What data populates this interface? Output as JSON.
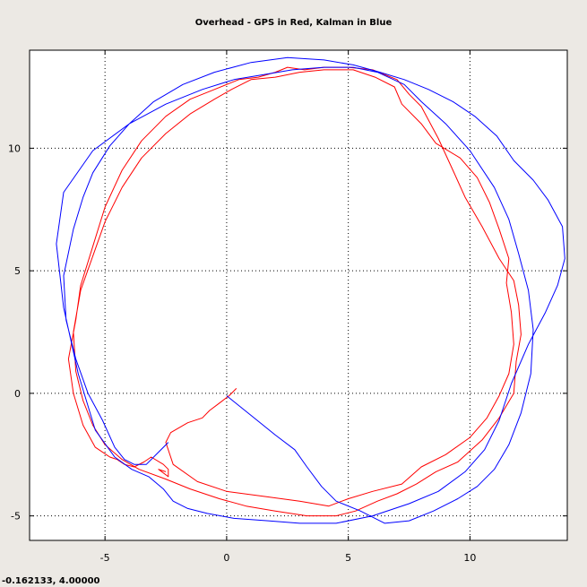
{
  "chart_data": {
    "type": "line",
    "title": "Overhead - GPS in Red, Kalman in Blue",
    "xlabel": "",
    "ylabel": "",
    "xlim": [
      -8.1,
      14
    ],
    "ylim": [
      -6,
      14
    ],
    "x_ticks": [
      -5,
      0,
      5,
      10
    ],
    "y_ticks": [
      -5,
      0,
      5,
      10
    ],
    "grid": true,
    "grid_style": "dotted",
    "series": [
      {
        "color": "#ff0000",
        "x": [
          0.4,
          0.1,
          -0.3,
          -0.7,
          -1.0,
          -1.6,
          -2.3,
          -2.5,
          -2.2,
          -1.2,
          0.0,
          1.5,
          3.0,
          4.2,
          5.0,
          6.0,
          7.2,
          8.0,
          9.0,
          10.0,
          10.7,
          11.2,
          11.6,
          11.8,
          11.7,
          11.5,
          11.6,
          11.2,
          10.8,
          10.3,
          9.6,
          8.6,
          8.0,
          7.2,
          6.9,
          6.1,
          5.2,
          4.0,
          3.0,
          2.0,
          1.0,
          0.2,
          -0.5,
          -1.5,
          -2.5,
          -3.5,
          -4.3,
          -5.0,
          -5.5,
          -6.0,
          -6.3,
          -6.2,
          -5.9,
          -5.5,
          -5.0,
          -4.3,
          -3.6,
          -2.5,
          -1.5,
          -0.3,
          0.8,
          2.0,
          3.3,
          4.5,
          5.3,
          6.2,
          7.0,
          7.8,
          8.6,
          9.5,
          10.5,
          11.2,
          11.8,
          11.9,
          12.1,
          12.0,
          11.8,
          11.2,
          10.5,
          9.8,
          9.3,
          8.7,
          8.0,
          7.5,
          7.0,
          6.0,
          5.0,
          4.0,
          3.2,
          2.5,
          2.0,
          1.3,
          0.5,
          -0.5,
          -1.5,
          -2.5,
          -3.5,
          -4.3,
          -5.0,
          -5.5,
          -6.0,
          -6.2,
          -6.5,
          -6.3,
          -5.9,
          -5.4,
          -4.8,
          -4.5,
          -4.2,
          -3.8,
          -3.4,
          -3.1,
          -2.6,
          -2.4,
          -2.4,
          -2.8,
          -2.5
        ],
        "y": [
          0.2,
          -0.1,
          -0.4,
          -0.7,
          -1.0,
          -1.2,
          -1.6,
          -2.0,
          -2.9,
          -3.6,
          -4.0,
          -4.2,
          -4.4,
          -4.6,
          -4.3,
          -4.0,
          -3.7,
          -3.0,
          -2.5,
          -1.8,
          -1.0,
          -0.1,
          0.8,
          2.0,
          3.3,
          4.5,
          5.5,
          6.7,
          7.8,
          8.8,
          9.6,
          10.2,
          11.0,
          11.8,
          12.5,
          12.9,
          13.2,
          13.2,
          13.1,
          12.9,
          12.8,
          12.4,
          12.0,
          11.4,
          10.6,
          9.6,
          8.4,
          7.0,
          5.6,
          4.2,
          2.5,
          0.9,
          -0.3,
          -1.3,
          -2.1,
          -2.7,
          -3.1,
          -3.5,
          -3.9,
          -4.3,
          -4.6,
          -4.8,
          -5.0,
          -5.0,
          -4.8,
          -4.4,
          -4.1,
          -3.7,
          -3.2,
          -2.8,
          -1.9,
          -1.0,
          0.0,
          1.3,
          2.4,
          3.6,
          4.6,
          5.5,
          6.8,
          8.0,
          9.1,
          10.4,
          11.7,
          12.2,
          12.8,
          13.2,
          13.3,
          13.3,
          13.2,
          13.3,
          13.1,
          12.9,
          12.8,
          12.4,
          12.0,
          11.3,
          10.3,
          9.1,
          7.6,
          6.0,
          4.4,
          3.0,
          1.4,
          0.0,
          -1.3,
          -2.2,
          -2.6,
          -2.7,
          -2.9,
          -3.0,
          -2.8,
          -2.6,
          -2.9,
          -3.1,
          -3.4,
          -3.1,
          -3.2
        ]
      },
      {
        "color": "#0000ff",
        "x": [
          0.0,
          1.0,
          2.0,
          2.8,
          3.3,
          3.9,
          4.5,
          5.5,
          6.5,
          7.5,
          8.5,
          9.5,
          10.3,
          11.0,
          11.6,
          12.1,
          12.5,
          12.6,
          12.4,
          12.0,
          11.6,
          11.0,
          10.0,
          9.0,
          8.0,
          7.3,
          6.2,
          5.2,
          4.0,
          2.7,
          1.5,
          0.3,
          -1.0,
          -2.5,
          -4.0,
          -5.5,
          -6.7,
          -7.0,
          -6.7,
          -6.1,
          -5.4,
          -4.6,
          -3.9,
          -3.2,
          -2.6,
          -2.2,
          -1.6,
          -0.8,
          0.3,
          1.7,
          3.0,
          4.5,
          6.0,
          7.5,
          8.7,
          9.8,
          10.6,
          11.2,
          11.7,
          12.4,
          13.1,
          13.6,
          13.9,
          13.8,
          13.2,
          12.6,
          11.8,
          11.1,
          10.2,
          9.3,
          8.3,
          7.3,
          6.3,
          5.2,
          4.0,
          2.5,
          1.0,
          -0.5,
          -1.8,
          -3.0,
          -4.0,
          -4.8,
          -5.5,
          -5.9,
          -6.3,
          -6.7,
          -6.6,
          -6.2,
          -5.7,
          -5.1,
          -4.6,
          -4.2,
          -3.8,
          -3.3,
          -2.8,
          -2.4
        ],
        "y": [
          -0.1,
          -0.9,
          -1.7,
          -2.3,
          -3.0,
          -3.8,
          -4.4,
          -4.8,
          -5.3,
          -5.2,
          -4.8,
          -4.3,
          -3.8,
          -3.1,
          -2.1,
          -0.8,
          0.8,
          2.6,
          4.2,
          5.7,
          7.1,
          8.4,
          9.9,
          11.0,
          11.9,
          12.6,
          13.1,
          13.3,
          13.3,
          13.2,
          13.0,
          12.8,
          12.4,
          11.8,
          11.0,
          9.9,
          8.2,
          6.1,
          3.5,
          0.8,
          -1.5,
          -2.6,
          -3.1,
          -3.4,
          -3.9,
          -4.4,
          -4.7,
          -4.9,
          -5.1,
          -5.2,
          -5.3,
          -5.3,
          -5.0,
          -4.5,
          -4.0,
          -3.2,
          -2.3,
          -1.1,
          0.4,
          2.0,
          3.3,
          4.4,
          5.5,
          6.8,
          7.9,
          8.7,
          9.5,
          10.5,
          11.3,
          11.9,
          12.4,
          12.8,
          13.1,
          13.4,
          13.6,
          13.7,
          13.5,
          13.1,
          12.6,
          11.9,
          11.0,
          10.1,
          9.0,
          8.0,
          6.7,
          4.8,
          3.0,
          1.4,
          0.0,
          -1.1,
          -2.2,
          -2.7,
          -2.9,
          -2.9,
          -2.4,
          -2.0
        ]
      }
    ]
  },
  "status_bar": {
    "cursor_readout": "-0.162133,   4.00000"
  }
}
